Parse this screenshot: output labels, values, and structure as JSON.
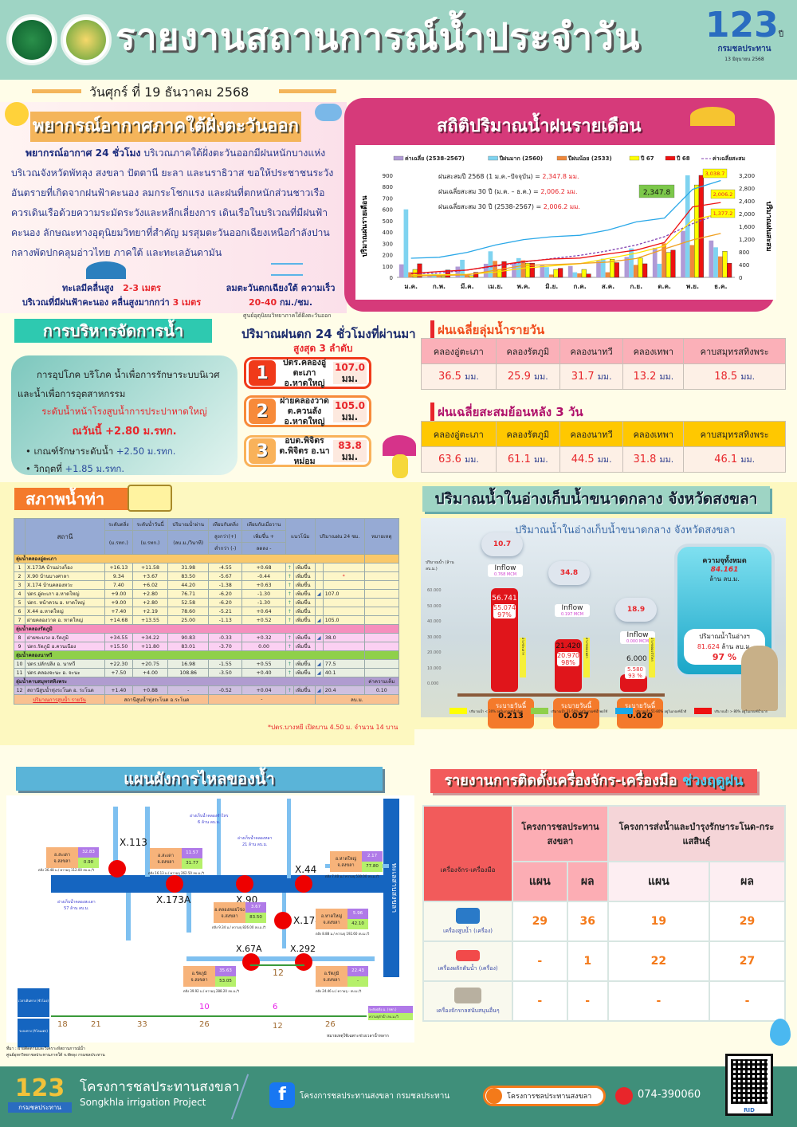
{
  "header": {
    "title": "รายงานสถานการณ์น้ำประจำวัน",
    "badge_number": "123",
    "badge_suffix": "ปี",
    "badge_org": "กรมชลประทาน",
    "badge_date": "13 มิถุนายน 2568",
    "date": "วันศุกร์ ที่ 19 ธันวาคม 2568"
  },
  "forecast": {
    "title": "พยากรณ์อากาศภาคใต้ฝั่งตะวันออก",
    "lead": "พยากรณ์อากาศ 24 ชั่วโมง",
    "body": "บริเวณภาคใต้ฝั่งตะวันออกมีฝนหนักบางแห่ง บริเวณจังหวัดพัทลุง สงขลา ปัตตานี ยะลา และนราธิวาส ขอให้ประชาชนระวังอันตรายที่เกิดจากฝนฟ้าคะนอง ลมกระโชกแรง และฝนที่ตกหนักส่วนชาวเรือควรเดินเรือด้วยความระมัดระวังและหลีกเลี่ยงการ  เดินเรือในบริเวณที่มีฝนฟ้าคะนอง ลักษณะทางอุตุนิยมวิทยาที่สำคัญ มรสุมตะวันออกเฉียงเหนือกำลังปานกลางพัดปกคลุมอ่าวไทย ภาคใต้ และทะเลอันดามัน",
    "wave_label": "ทะเลมีคลื่นสูง",
    "wave_value": "2-3 เมตร",
    "wave_storm_label": "บริเวณที่มีฝนฟ้าคะนอง คลื่นสูงมากกว่า",
    "wave_storm_value": "3 เมตร",
    "wind_label": "ลมตะวันตกเฉียงใต้ ความเร็ว",
    "wind_value": "20-40",
    "wind_unit": "กม./ชม.",
    "source": "ศูนย์อุตุนิยมวิทยาภาคใต้ฝั่งตะวันออก"
  },
  "rain_stats": {
    "title": "สถิติปริมาณน้ำฝนรายเดือน",
    "notes": [
      {
        "label": "ฝนสะสมปี 2568 (1 ม.ค.–ปัจจุบัน) =",
        "value": "2,347.8 มม."
      },
      {
        "label": "ฝนเฉลี่ยสะสม 30 ปี (ม.ค. – ธ.ค.) =",
        "value": "2,006.2 มม."
      },
      {
        "label": "ฝนเฉลี่ยสะสม 30 ปี (2538-2567)  =",
        "value": "2,006.2 มม."
      }
    ],
    "callouts": [
      "3,038.7",
      "2,347.8",
      "2,006.2",
      "1,377.2"
    ]
  },
  "chart_data": {
    "type": "bar",
    "title": "สถิติปริมาณน้ำฝนรายเดือน",
    "xlabel": "",
    "ylabel": "ปริมาณฝนรายเดือน",
    "y2label": "ปริมาณฝนสะสม",
    "ylim": [
      0,
      900
    ],
    "y2lim": [
      0,
      3200
    ],
    "yticks": [
      0,
      100,
      200,
      300,
      400,
      500,
      600,
      700,
      800,
      900
    ],
    "y2ticks": [
      "0",
      "400",
      "800",
      "1,200",
      "1,600",
      "2,000",
      "2,400",
      "2,800",
      "3,200"
    ],
    "legend_position": "top",
    "categories": [
      "ม.ค.",
      "ก.พ.",
      "มี.ค.",
      "เม.ย.",
      "พ.ค.",
      "มิ.ย.",
      "ก.ค.",
      "ส.ค.",
      "ก.ย.",
      "ต.ค.",
      "พ.ย.",
      "ธ.ค."
    ],
    "series": [
      {
        "name": "ค่าเฉลี่ย (2538-2567)",
        "kind": "bar",
        "color": "#b09ad6",
        "values": [
          115,
          20,
          95,
          120,
          130,
          105,
          100,
          145,
          180,
          260,
          410,
          325
        ]
      },
      {
        "name": "ปีฝนมาก (2560)",
        "kind": "bar",
        "color": "#7fd3f0",
        "values": [
          600,
          30,
          155,
          230,
          170,
          90,
          45,
          165,
          255,
          120,
          900,
          265
        ]
      },
      {
        "name": "ปีฝนน้อย (2533)",
        "kind": "bar",
        "color": "#f0883a",
        "values": [
          45,
          15,
          20,
          145,
          150,
          25,
          35,
          45,
          110,
          300,
          285,
          185
        ]
      },
      {
        "name": "ปี 67",
        "kind": "bar",
        "color": "#ffff00",
        "values": [
          70,
          10,
          15,
          70,
          125,
          70,
          70,
          160,
          170,
          220,
          815,
          230
        ]
      },
      {
        "name": "ปี 68",
        "kind": "bar",
        "color": "#ee1111",
        "values": [
          120,
          65,
          45,
          140,
          125,
          80,
          30,
          130,
          120,
          240,
          900,
          125
        ]
      },
      {
        "name": "ค่าเฉลี่ยสะสม",
        "kind": "line-dashed",
        "axis": "right",
        "color": "#8040b0",
        "values": [
          115,
          135,
          230,
          350,
          480,
          590,
          690,
          835,
          1015,
          1275,
          1685,
          2006.2
        ]
      },
      {
        "name": "สะสม ปีฝนมาก (2560)",
        "kind": "line",
        "axis": "right",
        "color": "#2aa8e8",
        "values": [
          600,
          630,
          785,
          1015,
          1185,
          1275,
          1320,
          1485,
          1740,
          1860,
          2760,
          3038.7
        ]
      },
      {
        "name": "สะสม ปี 68",
        "kind": "line",
        "axis": "right",
        "color": "#ee1111",
        "values": [
          120,
          185,
          230,
          370,
          495,
          575,
          605,
          735,
          855,
          1095,
          2210,
          2347.8
        ]
      },
      {
        "name": "สะสม ปี 67",
        "kind": "line",
        "axis": "right",
        "color": "#ffe000",
        "values": [
          70,
          80,
          95,
          165,
          290,
          360,
          430,
          590,
          760,
          980,
          1795,
          2006.2
        ]
      },
      {
        "name": "สะสม ปีฝนน้อย (2533)",
        "kind": "line",
        "axis": "right",
        "color": "#f0a020",
        "values": [
          45,
          60,
          80,
          225,
          375,
          400,
          435,
          480,
          590,
          890,
          1175,
          1377.2
        ]
      }
    ]
  },
  "water_mgmt": {
    "title": "การบริหารจัดการน้ำ",
    "text1": "การอุปโภค บริโภค น้ำเพื่อการรักษาระบบนิเวศ และน้ำเพื่อการอุตสาหกรรม",
    "level_label": "ระดับน้ำหน้าโรงสูบน้ำการประปาหาดใหญ่",
    "level_value": "ณวันนี้ +2.80 ม.รทก.",
    "bullets": [
      {
        "label": "เกณฑ์รักษาระดับน้ำ",
        "value": "+2.50 ม.รทก."
      },
      {
        "label": "วิกฤตที่",
        "value": "+1.85 ม.รทก."
      }
    ]
  },
  "top_rain": {
    "title": "ปริมาณฝนตก 24 ชั่วโมงที่ผ่านมา",
    "subtitle": "สูงสุด 3 ลำดับ",
    "items": [
      {
        "rank": "1",
        "line1": "ปตร.คลองอู่ตะเภา",
        "line2": "อ.หาดใหญ่",
        "value": "107.0",
        "unit": "มม."
      },
      {
        "rank": "2",
        "line1": "ฝายคลองวาด",
        "line2": "ต.ควนลัง อ.หาดใหญ่",
        "value": "105.0",
        "unit": "มม."
      },
      {
        "rank": "3",
        "line1": "อบต.พิจิตร",
        "line2": "ต.พิจิตร อ.นาหม่อม",
        "value": "83.8",
        "unit": "มม."
      }
    ]
  },
  "basin_daily": {
    "title": "ฝนเฉลี่ยลุ่มน้ำรายวัน",
    "unit": "มม.",
    "headers": [
      "คลองอู่ตะเภา",
      "คลองรัตภูมิ",
      "คลองนาทวี",
      "คลองเทพา",
      "คาบสมุทรสทิงพระ"
    ],
    "values": [
      "36.5",
      "25.9",
      "31.7",
      "13.2",
      "18.5"
    ]
  },
  "basin_3day": {
    "title": "ฝนเฉลี่ยสะสมย้อนหลัง 3 วัน",
    "unit": "มม.",
    "headers": [
      "คลองอู่ตะเภา",
      "คลองรัตภูมิ",
      "คลองนาทวี",
      "คลองเทพา",
      "คาบสมุทรสทิงพระ"
    ],
    "values": [
      "63.6",
      "61.1",
      "44.5",
      "31.8",
      "46.1"
    ]
  },
  "water_status": {
    "title": "สภาพน้ำท่า",
    "headers": {
      "station": "สถานี",
      "bank": "ระดับตลิ่ง",
      "bank_unit": "(ม.รทก.)",
      "today": "ระดับน้ำวันนี้",
      "today_unit": "(ม.รทก.)",
      "flow": "ปริมาณน้ำผ่าน",
      "flow_unit": "(ลบ.ม./วินาที)",
      "cmp_bank": "เทียบกับตลิ่ง",
      "cmp_bank_a": "สูงกว่า(+)",
      "cmp_bank_b": "ต่ำกว่า (-)",
      "cmp_yest": "เทียบกับเมื่อวาน",
      "cmp_yest_a": "เพิ่มขึ้น +",
      "cmp_yest_b": "ลดลง -",
      "trend": "แนวโน้ม",
      "rain24": "ปริมาณฝน 24 ชม.",
      "note": "หมายเหตุ"
    },
    "groups": [
      {
        "name": "ลุ่มน้ำคลองอู่ตะเภา",
        "color": "#f9c86a",
        "rowcolor": "#fdf6c8",
        "rows": [
          {
            "no": "1",
            "station": "X.173A บ้านม่วงก็อง",
            "bank": "+16.13",
            "today": "+11.58",
            "flow": "31.98",
            "cb": "-4.55",
            "cy": "+0.68",
            "trend": "เพิ่มขึ้น",
            "rain": "",
            "note": ""
          },
          {
            "no": "2",
            "station": "X.90 บ้านบางศาลา",
            "bank": "9.34",
            "today": "+3.67",
            "flow": "83.50",
            "cb": "-5.67",
            "cy": "-0.44",
            "trend": "เพิ่มขึ้น",
            "rain": "*",
            "note": ""
          },
          {
            "no": "3",
            "station": "X.174 บ้านคลองหวะ",
            "bank": "7.40",
            "today": "+6.02",
            "flow": "44.20",
            "cb": "-1.38",
            "cy": "+0.63",
            "trend": "เพิ่มขึ้น",
            "rain": "",
            "note": ""
          },
          {
            "no": "4",
            "station": "ปตร.อู่ตะเภา อ.หาดใหญ่",
            "bank": "+9.00",
            "today": "+2.80",
            "flow": "76.71",
            "cb": "-6.20",
            "cy": "-1.30",
            "trend": "เพิ่มขึ้น",
            "rain": "107.0",
            "note": ""
          },
          {
            "no": "5",
            "station": "ปตร. หน้าควน อ. หาดใหญ่",
            "bank": "+9.00",
            "today": "+2.80",
            "flow": "52.58",
            "cb": "-6.20",
            "cy": "-1.30",
            "trend": "เพิ่มขึ้น",
            "rain": "",
            "note": ""
          },
          {
            "no": "6",
            "station": "X.44 อ.หาดใหญ่",
            "bank": "+7.40",
            "today": "+2.19",
            "flow": "78.60",
            "cb": "-5.21",
            "cy": "+0.64",
            "trend": "เพิ่มขึ้น",
            "rain": "",
            "note": ""
          },
          {
            "no": "7",
            "station": "ฝายคลองวาด อ. หาดใหญ่",
            "bank": "+14.68",
            "today": "+13.55",
            "flow": "25.00",
            "cb": "-1.13",
            "cy": "+0.52",
            "trend": "เพิ่มขึ้น",
            "rain": "105.0",
            "note": ""
          }
        ]
      },
      {
        "name": "ลุ่มน้ำคลองรัตภูมิ",
        "color": "#f58fbd",
        "rowcolor": "#fbd0f2",
        "rows": [
          {
            "no": "8",
            "station": "ฝายชะมวง อ.รัตภูมิ",
            "bank": "+34.55",
            "today": "+34.22",
            "flow": "90.83",
            "cb": "-0.33",
            "cy": "+0.32",
            "trend": "เพิ่มขึ้น",
            "rain": "38.0",
            "note": ""
          },
          {
            "no": "9",
            "station": "ปตร.รัตภูมิ อ.ควนเนียง",
            "bank": "+15.50",
            "today": "+11.80",
            "flow": "83.01",
            "cb": "-3.70",
            "cy": "0.00",
            "trend": "เพิ่มขึ้น",
            "rain": "",
            "note": ""
          }
        ]
      },
      {
        "name": "ลุ่มน้ำคลองนาทวี",
        "color": "#8fd04a",
        "rowcolor": "#e9efe2",
        "rows": [
          {
            "no": "10",
            "station": "ปตร.ปลักปลิง อ. นาทวี",
            "bank": "+22.30",
            "today": "+20.75",
            "flow": "16.98",
            "cb": "-1.55",
            "cy": "+0.55",
            "trend": "เพิ่มขึ้น",
            "rain": "77.5",
            "note": ""
          },
          {
            "no": "11",
            "station": "ปตร.คลองจะนะ อ. จะนะ",
            "bank": "+7.50",
            "today": "+4.00",
            "flow": "108.86",
            "cb": "-3.50",
            "cy": "+0.40",
            "trend": "เพิ่มขึ้น",
            "rain": "40.1",
            "note": ""
          }
        ]
      },
      {
        "name": "ลุ่มน้ำคาบสมุทรสทิงพระ",
        "color": "#b09cd0",
        "rowcolor": "#cfc0e0",
        "note_header": "ค่าความเค็ม",
        "rows": [
          {
            "no": "12",
            "station": "สถานีสูบน้ำทุ่งระโนด อ. ระโนด",
            "bank": "+1.40",
            "today": "+0.88",
            "flow": "-",
            "cb": "-0.52",
            "cy": "+0.04",
            "trend": "เพิ่มขึ้น",
            "rain": "20.4",
            "note": "0.10"
          }
        ]
      }
    ],
    "footer_row": {
      "link": "ปริมาณการสูบน้ำ รายวัน",
      "station": "สถานีสูบน้ำทุ่งระโนด อ.ระโนด",
      "value": "-",
      "unit": "ลบ.ม."
    },
    "footnote": "*ปตร.บางหยี เปิดบาน 4.50 ม. จำนวน 14 บาน"
  },
  "reservoir": {
    "title": "ปริมาณน้ำในอ่างเก็บน้ำขนาดกลาง จังหวัดสงขลา",
    "chart_title": "ปริมาณน้ำในอ่างเก็บน้ำขนาดกลาง จังหวัดสงขลา",
    "y_label": "ปริมาณน้ำ (ล้าน ลบ.ม.)",
    "y_ticks": [
      "60.000",
      "50.000",
      "40.000",
      "30.000",
      "20.000",
      "10.000",
      "0.000"
    ],
    "items": [
      {
        "name": "อ่างฯสะเดาฯ",
        "rain": "10.7",
        "inflow_label": "Inflow",
        "inflow": "0.768 MCM",
        "capacity": "56.741",
        "current": "55.074",
        "percent": "97%",
        "drain_label": "ระบายวันนี้",
        "drain": "0.213"
      },
      {
        "name": "อ่างฯคลองหลา",
        "rain": "34.8",
        "inflow_label": "Inflow",
        "inflow": "0.197 MCM",
        "capacity": "21.420",
        "current": "20.970",
        "percent": "98%",
        "drain_label": "ระบายวันนี้",
        "drain": "0.057"
      },
      {
        "name": "อ่างฯคลองจำไหร",
        "rain": "18.9",
        "inflow_label": "Inflow",
        "inflow": "0.000 MCM",
        "capacity": "6.000",
        "current": "5.580",
        "percent": "93 %",
        "drain_label": "ระบายวันนี้",
        "drain": "0.020"
      }
    ],
    "total_label": "ความจุทั้งหมด",
    "total_value": "84.161",
    "total_unit": "ล้าน ลบ.ม.",
    "stored_label": "ปริมาณน้ำในอ่างฯ",
    "stored_value": "81.624",
    "stored_unit": "ล้าน ลบ.ม.",
    "stored_percent": "97 %",
    "legend": [
      {
        "color": "#ffff00",
        "text": "ปริมาณน้ำ < 30% อยู่ในเกณฑ์น้ำน้อย"
      },
      {
        "color": "#8fd04a",
        "text": "ปริมาณน้ำ 31-50% อยู่ในเกณฑ์น้ำพอใช้"
      },
      {
        "color": "#1aa8e8",
        "text": "ปริมาณน้ำ 51-80% อยู่ในเกณฑ์น้ำดี"
      },
      {
        "color": "#ee1111",
        "text": "ปริมาณน้ำ > 80% อยู่ในเกณฑ์น้ำมาก"
      }
    ]
  },
  "flow_diagram": {
    "title": "แผนผังการไหลของน้ำ",
    "sea_label": "ทะเลสาบสงขลา",
    "stations": [
      {
        "id": "X.113",
        "place": "อ.สะเดา จ.สงขลา",
        "level": "32.83",
        "flow": "0.90",
        "note": "ตลิ่ง 36.48 ม./ ความจุ 112.00 ลบ.ม./วิ"
      },
      {
        "id": "X.173A",
        "place": "อ.สะเดา จ.สงขลา",
        "level": "11.57",
        "flow": "31.77",
        "note": "ตลิ่ง 16.13 ม./ ความจุ 262.50 ลบ.ม./วิ"
      },
      {
        "id": "X.90",
        "place": "อ.คลองหอยโข่ง จ.สงขลา",
        "level": "3.67",
        "flow": "83.50",
        "note": "ตลิ่ง 9.34 ม./ ความจุ 826.00 ลบ.ม./วิ"
      },
      {
        "id": "X.44",
        "place": "อ.หาดใหญ่ จ.สงขลา",
        "level": "2.17",
        "flow": "77.80",
        "note": "ตลิ่ง 7.40 ม./ ความจุ 530.00 ลบ.ม./วิ"
      },
      {
        "id": "X.174",
        "place": "อ.หาดใหญ่ จ.สงขลา",
        "level": "5.96",
        "flow": "42.10",
        "note": "ตลิ่ง 8.88 ม./ ความจุ 192.60 ลบ.ม./วิ"
      },
      {
        "id": "X.67A",
        "place": "อ.รัตภูมิ จ.สงขลา",
        "level": "35.63",
        "flow": "53.05",
        "note": "ตลิ่ง 39.92 ม./ ความจุ 288.20 ลบ.ม./วิ"
      },
      {
        "id": "X.292",
        "place": "อ.รัตภูมิ จ.สงขลา",
        "level": "22.43",
        "flow": "-",
        "note": "ตลิ่ง 24.46 ม./ ความจุ - ลบ.ม./วิ"
      }
    ],
    "reservoirs": [
      {
        "name": "อ่างเก็บน้ำคลองจำไหร",
        "cap": "6 ล้าน ลบ.ม."
      },
      {
        "name": "อ่างเก็บน้ำคลองหลา",
        "cap": "21 ล้าน ลบ.ม."
      },
      {
        "name": "อ่างเก็บน้ำคลองสะเดา",
        "cap": "57 ล้าน ลบ.ม."
      }
    ],
    "segment_gap": "12",
    "time_label": "เวลาเดินทาง (ชั่วโมง)",
    "dist_label": "ระยะทาง (กิโลเมตร)",
    "times": [
      "10",
      "6"
    ],
    "distances": [
      "18",
      "21",
      "33",
      "26",
      "12",
      "26"
    ],
    "legend_level": "ระดับตลิ่ง ม. (รทก.)",
    "legend_flow": "ความจุลำน้ำ ลบ.ม./วิ",
    "remark": "หมายเหตุใช้เฉพาะช่วงเวลาน้ำหลาก",
    "source1": "ที่มา : ฝ่ายติดตามและวิเคราะห์สถานการณ์น้ำ",
    "source2": "ศูนย์อุทกวิทยาชลประทานภาคใต้ จ.พัทลุง กรมชลประทาน"
  },
  "machinery": {
    "title": "รายงานการติดตั้งเครื่องจักร-เครื่องมือ",
    "title_highlight": "ช่วงฤดูฝน",
    "col_item": "เครื่องจักร-เครื่องมือ",
    "group1": "โครงการชลประทานสงขลา",
    "group2": "โครงการส่งน้ำและบำรุงรักษาระโนด-กระแสสินธุ์",
    "plan": "แผน",
    "result": "ผล",
    "rows": [
      {
        "name": "เครื่องสูบน้ำ (เครื่อง)",
        "icon": "water-pump",
        "v": [
          "29",
          "36",
          "19",
          "29"
        ]
      },
      {
        "name": "เครื่องผลักดันน้ำ (เครื่อง)",
        "icon": "water-pusher",
        "v": [
          "-",
          "1",
          "22",
          "27"
        ]
      },
      {
        "name": "เครื่องจักรกลสนับสนุนอื่นๆ",
        "icon": "machinery",
        "v": [
          "-",
          "-",
          "-",
          "-"
        ]
      }
    ]
  },
  "footer": {
    "org_th": "โครงการชลประทานสงขลา",
    "org_en": "Songkhla  irrigation Project",
    "facebook": "โครงการชลประทานสงขลา กรมชลประทาน",
    "website": "โครงการชลประทานสงขลา",
    "phone": "074-390060",
    "qr_label": "RID"
  },
  "colors": {
    "header_bg": "#9ed4c4",
    "accent_pink": "#d63a7a",
    "accent_orange": "#f47a2b",
    "accent_teal": "#2ec9b0",
    "footer_bg": "#3f8f7a"
  }
}
